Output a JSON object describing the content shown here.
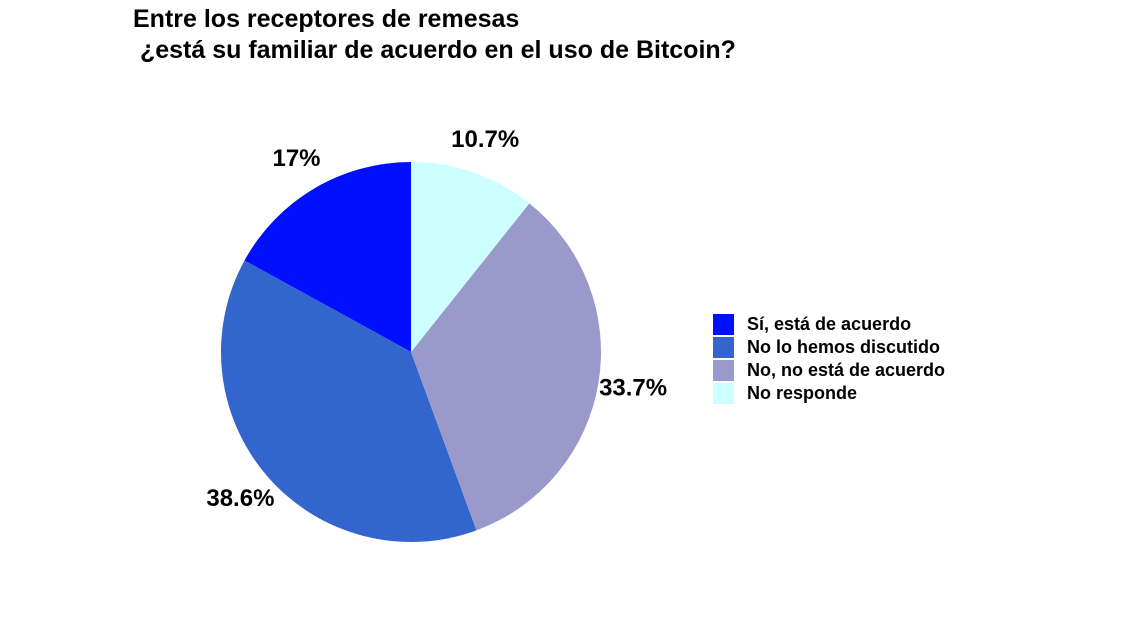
{
  "chart_data": {
    "type": "pie",
    "title": "Entre los receptores de remesas",
    "subtitle": " ¿está su familiar de acuerdo en el uso de Bitcoin?",
    "categories": [
      "Sí, está de acuerdo",
      "No lo hemos discutido",
      "No, no está de acuerdo",
      "No responde"
    ],
    "values": [
      17,
      38.6,
      33.7,
      10.7
    ],
    "labels": [
      "17%",
      "38.6%",
      "33.7%",
      "10.7%"
    ],
    "colors": [
      "#0010FF",
      "#3366CC",
      "#9999CC",
      "#CCFFFF"
    ],
    "legend_position": "right"
  }
}
